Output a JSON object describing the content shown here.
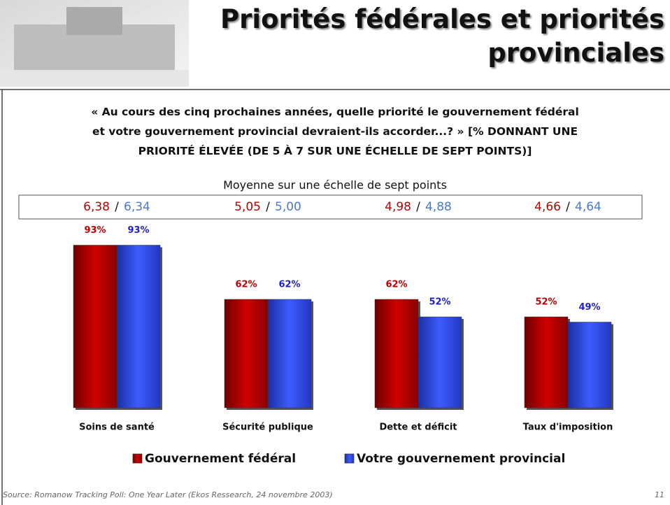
{
  "header": {
    "title": "Priorités fédérales et priorités provinciales"
  },
  "chart_data": {
    "type": "bar",
    "question": "« Au cours des cinq prochaines années, quelle priorité le gouvernement fédéral et votre gouvernement provincial devraient-ils accorder...? » [% DONNANT UNE PRIORITÉ ÉLEVÉE (DE  5 À 7 SUR UNE ÉCHELLE DE SEPT POINTS)]",
    "mean_title": "Moyenne sur une échelle de sept points",
    "mean_separator": "/",
    "categories": [
      "Soins de santé",
      "Sécurité publique",
      "Dette et déficit",
      "Taux d'imposition"
    ],
    "series": [
      {
        "name": "Gouvernement fédéral",
        "color": "#c00000",
        "values": [
          93,
          62,
          62,
          52
        ],
        "value_labels": [
          "93%",
          "62%",
          "62%",
          "52%"
        ],
        "means": [
          "6,38",
          "5,05",
          "4,98",
          "4,66"
        ]
      },
      {
        "name": "Votre gouvernement provincial",
        "color": "#2f4ff0",
        "values": [
          93,
          62,
          52,
          49
        ],
        "value_labels": [
          "93%",
          "62%",
          "52%",
          "49%"
        ],
        "means": [
          "6,34",
          "5,00",
          "4,88",
          "4,64"
        ]
      }
    ],
    "legend": "bottom"
  },
  "footer": {
    "source": "Source: Romanow Tracking Poll:  One Year Later (Ekos Ressearch, 24 novembre 2003)",
    "page": "11"
  }
}
